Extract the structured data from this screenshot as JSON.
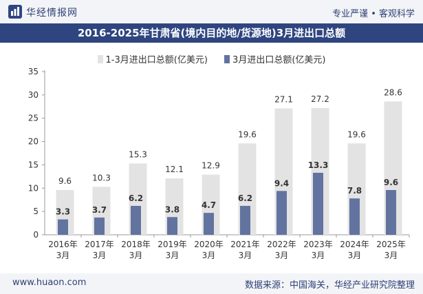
{
  "header": {
    "brand": "华经情报网",
    "slogan": "专业严谨 • 客观科学"
  },
  "chart_data": {
    "type": "bar",
    "title": "2016-2025年甘肃省(境内目的地/货源地)3月进出口总额",
    "categories": [
      "2016年\n3月",
      "2017年\n3月",
      "2018年\n3月",
      "2019年\n3月",
      "2020年\n3月",
      "2021年\n3月",
      "2022年\n3月",
      "2023年\n3月",
      "2024年\n3月",
      "2025年\n3月"
    ],
    "series": [
      {
        "name": "1-3月进出口总额(亿美元)",
        "color": "#e3e3e3",
        "values": [
          9.6,
          10.3,
          15.3,
          12.1,
          12.9,
          19.6,
          27.1,
          27.2,
          19.6,
          28.6
        ]
      },
      {
        "name": "3月进出口总额(亿美元)",
        "color": "#63739f",
        "values": [
          3.3,
          3.7,
          6.2,
          3.8,
          4.7,
          6.2,
          9.4,
          13.3,
          7.8,
          9.6
        ]
      }
    ],
    "yticks": [
      0,
      5,
      10,
      15,
      20,
      25,
      30,
      35
    ],
    "ylim": [
      0,
      35
    ],
    "legend_position": "top",
    "grid": false
  },
  "footer": {
    "website": "www.huaon.com",
    "source": "数据来源：中国海关，华经产业研究院整理"
  }
}
